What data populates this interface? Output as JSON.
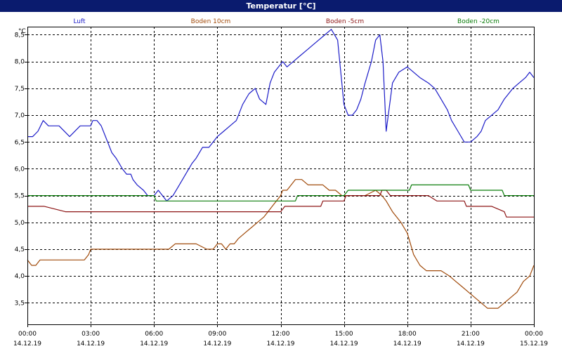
{
  "window": {
    "title": "Temperatur [°C]"
  },
  "chart_data": {
    "type": "line",
    "title": "Temperatur [°C]",
    "ylabel": "°C",
    "xlabel": "",
    "ylim": [
      3.1,
      8.65
    ],
    "xlim": [
      0,
      24
    ],
    "grid": true,
    "legend_position": "top",
    "y_ticks": [
      "8,5",
      "8,0",
      "7,5",
      "7,0",
      "6,5",
      "6,0",
      "5,5",
      "5,0",
      "4,5",
      "4,0",
      "3,5"
    ],
    "x_ticks": [
      {
        "time": "00:00",
        "date": "14.12.19"
      },
      {
        "time": "03:00",
        "date": "14.12.19"
      },
      {
        "time": "06:00",
        "date": "14.12.19"
      },
      {
        "time": "09:00",
        "date": "14.12.19"
      },
      {
        "time": "12:00",
        "date": "14.12.19"
      },
      {
        "time": "15:00",
        "date": "14.12.19"
      },
      {
        "time": "18:00",
        "date": "14.12.19"
      },
      {
        "time": "21:00",
        "date": "14.12.19"
      },
      {
        "time": "00:00",
        "date": "15.12.19"
      }
    ],
    "series": [
      {
        "name": "Luft",
        "color": "#1c1cc8",
        "x": [
          0,
          0.25,
          0.5,
          0.75,
          1,
          1.25,
          1.5,
          2,
          2.5,
          2.75,
          3,
          3.1,
          3.3,
          3.5,
          3.7,
          4,
          4.2,
          4.5,
          4.7,
          4.9,
          5,
          5.2,
          5.5,
          5.7,
          6,
          6.2,
          6.4,
          6.6,
          6.9,
          7.2,
          7.5,
          7.8,
          8,
          8.3,
          8.6,
          8.8,
          9,
          9.3,
          9.6,
          9.9,
          10.2,
          10.5,
          10.8,
          11,
          11.3,
          11.5,
          11.7,
          11.9,
          12.1,
          12.3,
          12.6,
          12.9,
          13.2,
          13.5,
          13.8,
          14.1,
          14.4,
          14.7,
          14.9,
          15,
          15.2,
          15.4,
          15.6,
          15.8,
          16,
          16.3,
          16.5,
          16.7,
          16.85,
          17,
          17.3,
          17.6,
          18,
          18.3,
          18.6,
          19,
          19.3,
          19.6,
          19.9,
          20.1,
          20.4,
          20.7,
          21,
          21.3,
          21.5,
          21.7,
          22,
          22.3,
          22.6,
          22.8,
          23,
          23.3,
          23.6,
          23.8,
          24
        ],
        "values": [
          6.6,
          6.6,
          6.7,
          6.9,
          6.8,
          6.8,
          6.8,
          6.6,
          6.8,
          6.8,
          6.8,
          6.9,
          6.9,
          6.8,
          6.6,
          6.3,
          6.2,
          6.0,
          5.9,
          5.9,
          5.8,
          5.7,
          5.6,
          5.5,
          5.5,
          5.6,
          5.5,
          5.4,
          5.5,
          5.7,
          5.9,
          6.1,
          6.2,
          6.4,
          6.4,
          6.5,
          6.6,
          6.7,
          6.8,
          6.9,
          7.2,
          7.4,
          7.5,
          7.3,
          7.2,
          7.6,
          7.8,
          7.9,
          8.0,
          7.9,
          8.0,
          8.1,
          8.2,
          8.3,
          8.4,
          8.5,
          8.6,
          8.4,
          7.6,
          7.2,
          7.0,
          7.0,
          7.1,
          7.3,
          7.6,
          8.0,
          8.4,
          8.5,
          8.0,
          6.7,
          7.6,
          7.8,
          7.9,
          7.8,
          7.7,
          7.6,
          7.5,
          7.3,
          7.1,
          6.9,
          6.7,
          6.5,
          6.5,
          6.6,
          6.7,
          6.9,
          7.0,
          7.1,
          7.3,
          7.4,
          7.5,
          7.6,
          7.7,
          7.8,
          7.7
        ]
      },
      {
        "name": "Boden 10cm",
        "color": "#a04a0a",
        "x": [
          0,
          0.2,
          0.4,
          0.6,
          1,
          2,
          2.5,
          2.7,
          2.9,
          3,
          4,
          5,
          6,
          6.5,
          6.7,
          7,
          7.5,
          8,
          8.5,
          8.8,
          9,
          9.2,
          9.4,
          9.6,
          9.8,
          10,
          10.3,
          10.6,
          10.9,
          11.2,
          11.4,
          11.6,
          11.8,
          12,
          12.1,
          12.3,
          12.5,
          12.7,
          13,
          13.3,
          13.6,
          14,
          14.3,
          14.6,
          14.9,
          15,
          15.3,
          16,
          16.5,
          16.8,
          17,
          17.3,
          17.7,
          18,
          18.3,
          18.6,
          18.9,
          19.3,
          19.6,
          20,
          20.3,
          20.6,
          20.9,
          21.2,
          21.5,
          21.8,
          22,
          22.3,
          22.6,
          22.9,
          23.2,
          23.5,
          23.8,
          24
        ],
        "values": [
          4.3,
          4.2,
          4.2,
          4.3,
          4.3,
          4.3,
          4.3,
          4.3,
          4.4,
          4.5,
          4.5,
          4.5,
          4.5,
          4.5,
          4.5,
          4.6,
          4.6,
          4.6,
          4.5,
          4.5,
          4.6,
          4.6,
          4.5,
          4.6,
          4.6,
          4.7,
          4.8,
          4.9,
          5.0,
          5.1,
          5.2,
          5.3,
          5.4,
          5.5,
          5.6,
          5.6,
          5.7,
          5.8,
          5.8,
          5.7,
          5.7,
          5.7,
          5.6,
          5.6,
          5.5,
          5.5,
          5.5,
          5.5,
          5.6,
          5.5,
          5.4,
          5.2,
          5.0,
          4.8,
          4.4,
          4.2,
          4.1,
          4.1,
          4.1,
          4.0,
          3.9,
          3.8,
          3.7,
          3.6,
          3.5,
          3.4,
          3.4,
          3.4,
          3.5,
          3.6,
          3.7,
          3.9,
          4.0,
          4.2
        ]
      },
      {
        "name": "Boden -5cm",
        "color": "#8c1414",
        "x": [
          0,
          0.8,
          1.8,
          12,
          12.2,
          13.9,
          14,
          15,
          15.1,
          16.7,
          16.8,
          17,
          17.2,
          18,
          19,
          19.4,
          20.7,
          20.8,
          22,
          22.6,
          22.7,
          24
        ],
        "values": [
          5.3,
          5.3,
          5.2,
          5.2,
          5.3,
          5.3,
          5.4,
          5.4,
          5.5,
          5.5,
          5.6,
          5.6,
          5.5,
          5.5,
          5.5,
          5.4,
          5.4,
          5.3,
          5.3,
          5.2,
          5.1,
          5.1
        ]
      },
      {
        "name": "Boden -20cm",
        "color": "#0a7d0a",
        "x": [
          0,
          6,
          6.1,
          11.9,
          12,
          12.7,
          12.8,
          15,
          15.2,
          18.1,
          18.2,
          20.9,
          21,
          22.5,
          22.6,
          24
        ],
        "values": [
          5.5,
          5.5,
          5.4,
          5.4,
          5.4,
          5.4,
          5.5,
          5.5,
          5.6,
          5.6,
          5.7,
          5.7,
          5.6,
          5.6,
          5.5,
          5.5
        ]
      }
    ]
  }
}
